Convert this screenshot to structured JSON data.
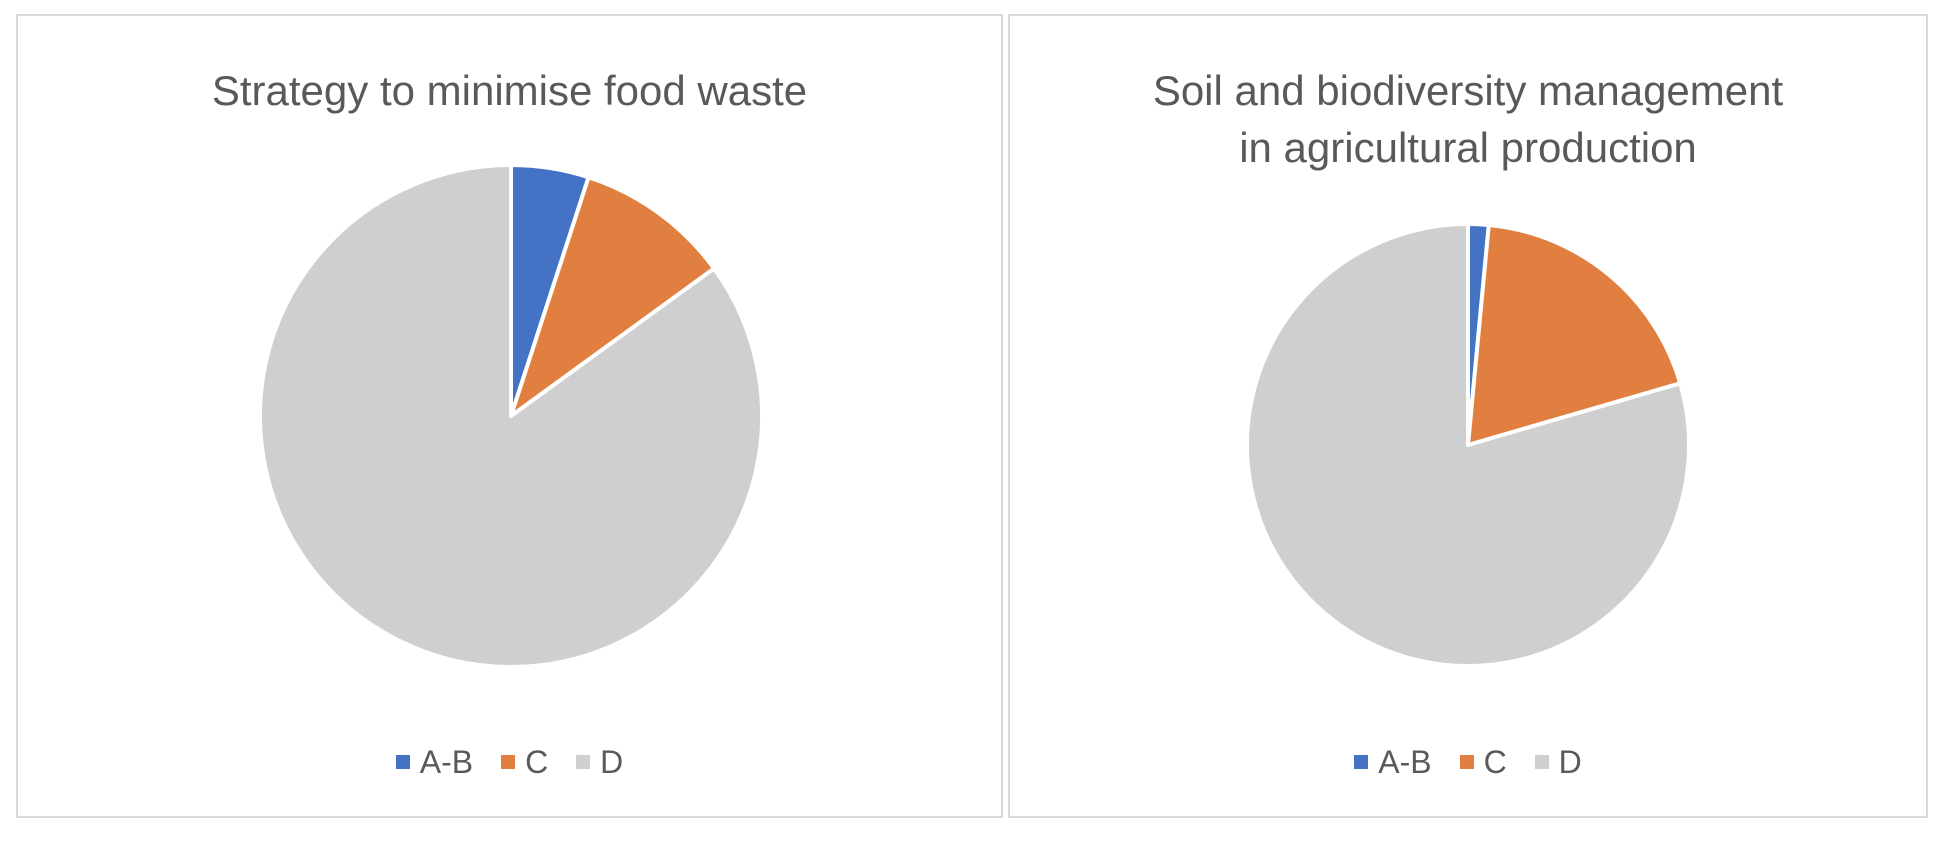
{
  "colors": {
    "A-B": "#4472c4",
    "C": "#e07f3f",
    "D": "#d0cfcf"
  },
  "chart_data": [
    {
      "type": "pie",
      "title": "Strategy to minimise food waste",
      "categories": [
        "A-B",
        "C",
        "D"
      ],
      "values": [
        5,
        10,
        85
      ],
      "legend": "bottom"
    },
    {
      "type": "pie",
      "title": "Soil and biodiversity management\nin agricultural production",
      "categories": [
        "A-B",
        "C",
        "D"
      ],
      "values": [
        1.5,
        19,
        79.5
      ],
      "legend": "bottom"
    }
  ]
}
